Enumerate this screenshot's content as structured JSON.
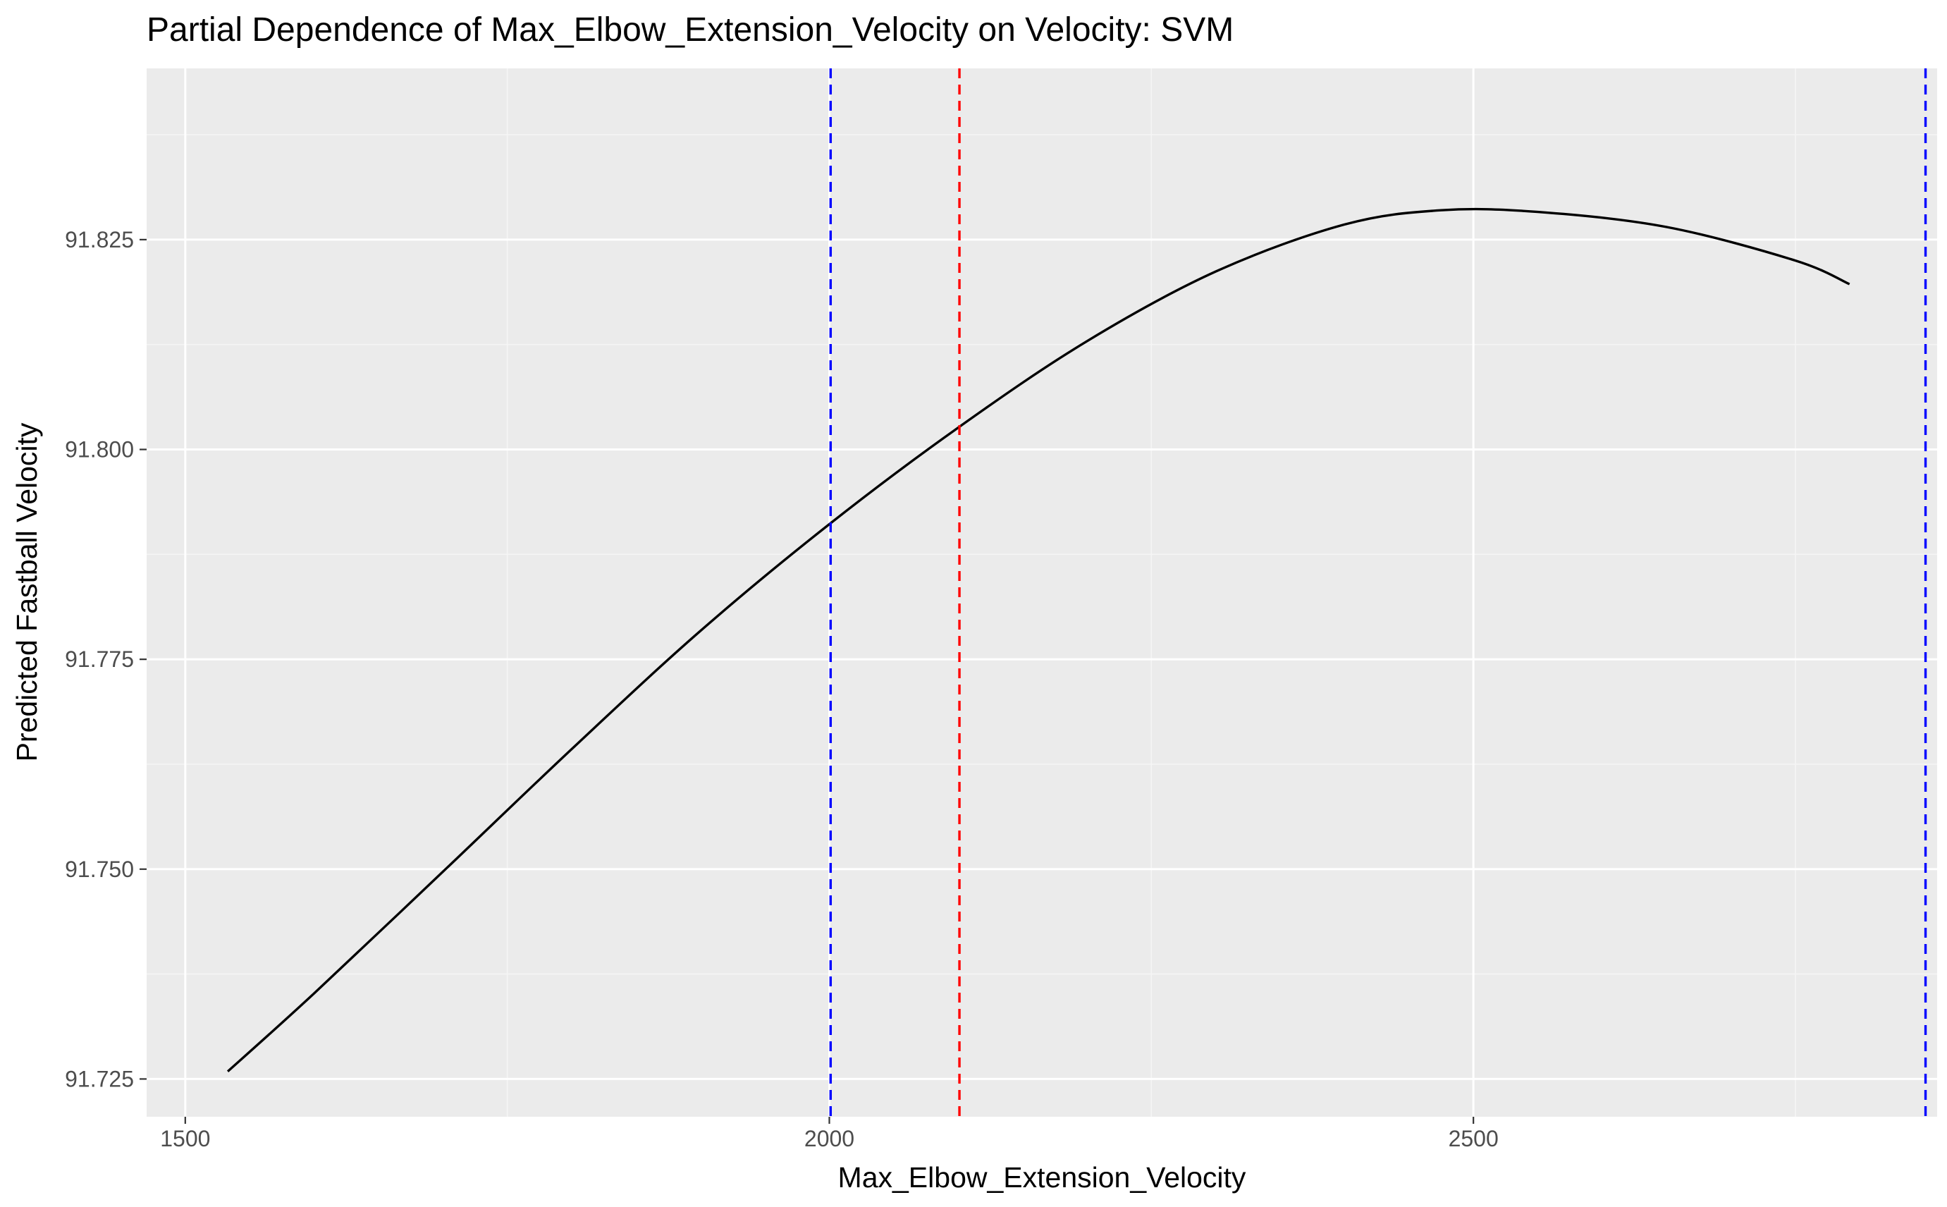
{
  "chart_data": {
    "type": "line",
    "title": "Partial Dependence of Max_Elbow_Extension_Velocity on Velocity: SVM",
    "xlabel": "Max_Elbow_Extension_Velocity",
    "ylabel": "Predicted Fastball Velocity",
    "xlim": [
      1470,
      2860
    ],
    "ylim": [
      91.7205,
      91.8454
    ],
    "x_ticks": [
      1500,
      2000,
      2500
    ],
    "x_tick_labels": [
      "1500",
      "2000",
      "2500"
    ],
    "x_minor_ticks": [
      1750,
      2250,
      2750
    ],
    "y_ticks": [
      91.725,
      91.75,
      91.775,
      91.8,
      91.825
    ],
    "y_tick_labels": [
      "91.725",
      "91.750",
      "91.775",
      "91.800",
      "91.825"
    ],
    "y_minor_ticks": [
      91.7375,
      91.7625,
      91.7875,
      91.8125,
      91.8375
    ],
    "grid": true,
    "series": [
      {
        "color": "#000000",
        "x": [
          1533,
          1600,
          1700,
          1800,
          1900,
          2000,
          2100,
          2200,
          2300,
          2400,
          2475,
          2550,
          2650,
          2750,
          2792
        ],
        "y": [
          91.7259,
          91.7352,
          91.7497,
          91.7643,
          91.7784,
          91.7911,
          91.8026,
          91.8129,
          91.8212,
          91.8268,
          91.8285,
          91.8283,
          91.8265,
          91.8225,
          91.8197
        ]
      }
    ],
    "vlines": [
      {
        "x": 2001,
        "color": "#0000ff",
        "style": "dashed"
      },
      {
        "x": 2101,
        "color": "#ff0000",
        "style": "dashed"
      },
      {
        "x": 2851,
        "color": "#0000ff",
        "style": "dashed"
      }
    ],
    "colors": {
      "panel_background": "#ebebeb",
      "grid_major": "#ffffff",
      "grid_minor": "#f5f5f5",
      "tick_text": "#4d4d4d",
      "tick_mark": "#333333"
    }
  }
}
